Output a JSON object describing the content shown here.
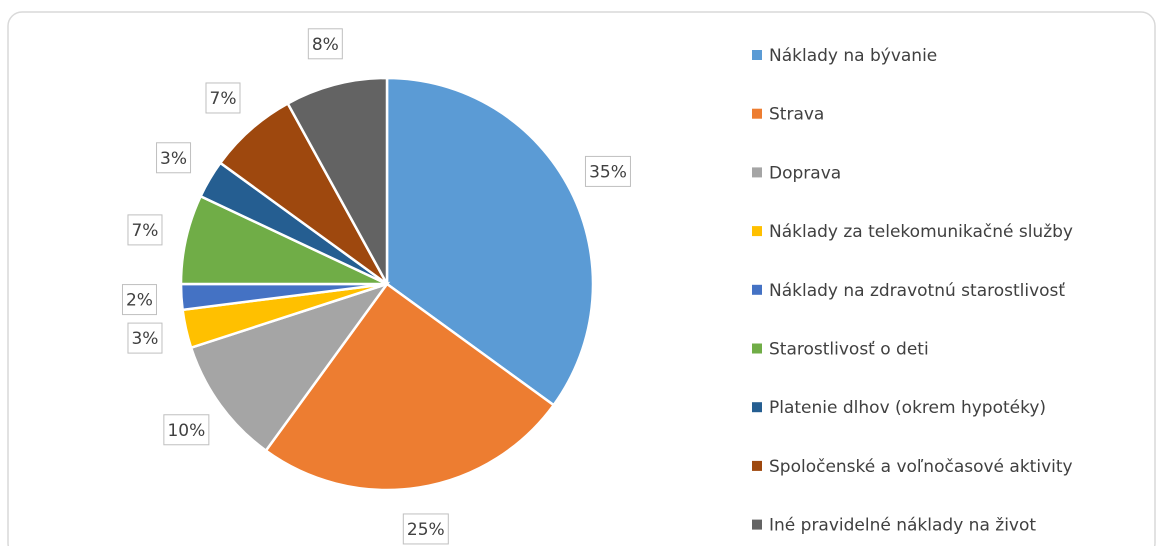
{
  "chart_data": {
    "type": "pie",
    "categories": [
      "Náklady na bývanie",
      "Strava",
      "Doprava",
      "Náklady za telekomunikačné služby",
      "Náklady na zdravotnú starostlivosť",
      "Starostlivosť o deti",
      "Platenie dlhov (okrem hypotéky)",
      "Spoločenské a voľnočasové aktivity",
      "Iné pravidelné náklady na život"
    ],
    "values": [
      35,
      25,
      10,
      3,
      2,
      7,
      3,
      7,
      8
    ],
    "value_labels": [
      "35%",
      "25%",
      "10%",
      "3%",
      "2%",
      "7%",
      "3%",
      "7%",
      "8%"
    ],
    "colors": [
      "#5b9bd5",
      "#ed7d31",
      "#a5a5a5",
      "#ffc000",
      "#4472c4",
      "#70ad47",
      "#255e91",
      "#9e480e",
      "#636363"
    ],
    "legend": "right"
  }
}
